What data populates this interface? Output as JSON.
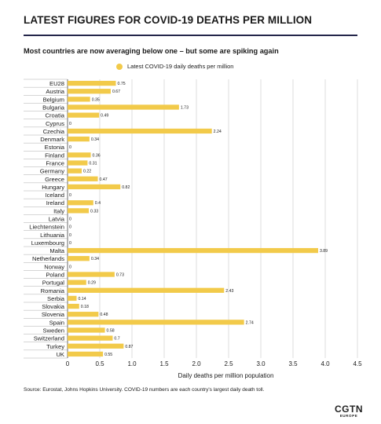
{
  "title": "LATEST FIGURES FOR COVID-19 DEATHS PER MILLION",
  "subtitle": "Most countries are now averaging below one – but some are spiking again",
  "source": "Source: Eurostat, Johns Hopkins University. COVID-19 numbers are each country's largest daily death toll.",
  "logo": {
    "main": "CGTN",
    "sub": "EUROPE"
  },
  "colors": {
    "bar": "#f2ca4a",
    "rule": "#24264a",
    "grid": "#c8c8c8"
  },
  "chart_data": {
    "type": "bar",
    "orientation": "horizontal",
    "xlabel": "Daily deaths per million population",
    "ylabel": "",
    "xlim": [
      0,
      4.5
    ],
    "xticks": [
      "0",
      "0.5",
      "1.0",
      "1.5",
      "2.0",
      "2.5",
      "3.0",
      "3.5",
      "4.0",
      "4.5"
    ],
    "grid": true,
    "legend_position": "top",
    "series": [
      {
        "name": "Latest COVID-19 daily deaths per million"
      }
    ],
    "categories": [
      "EU28",
      "Austria",
      "Belgium",
      "Bulgaria",
      "Croatia",
      "Cyprus",
      "Czechia",
      "Denmark",
      "Estonia",
      "Finland",
      "France",
      "Germany",
      "Greece",
      "Hungary",
      "Iceland",
      "Ireland",
      "Italy",
      "Latvia",
      "Liechtenstein",
      "Lithuania",
      "Luxembourg",
      "Malta",
      "Netherlands",
      "Norway",
      "Poland",
      "Portugal",
      "Romania",
      "Serbia",
      "Slovakia",
      "Slovenia",
      "Spain",
      "Sweden",
      "Switzerland",
      "Turkey",
      "UK"
    ],
    "values": [
      0.75,
      0.67,
      0.35,
      1.73,
      0.49,
      0,
      2.24,
      0.34,
      0,
      0.36,
      0.31,
      0.22,
      0.47,
      0.82,
      0,
      0.4,
      0.33,
      0,
      0,
      0,
      0,
      3.89,
      0.34,
      0,
      0.73,
      0.29,
      2.43,
      0.14,
      0.18,
      0.48,
      2.74,
      0.58,
      0.7,
      0.87,
      0.55
    ],
    "value_labels": [
      "0.75",
      "0.67",
      "0.35",
      "1.73",
      "0.49",
      "0",
      "2.24",
      "0.34",
      "0",
      "0.36",
      "0.31",
      "0.22",
      "0.47",
      "0.82",
      "0",
      "0.4",
      "0.33",
      "0",
      "0",
      "0",
      "0",
      "3.89",
      "0.34",
      "0",
      "0.73",
      "0.29",
      "2.43",
      "0.14",
      "0.18",
      "0.48",
      "2.74",
      "0.58",
      "0.7",
      "0.87",
      "0.55"
    ]
  }
}
